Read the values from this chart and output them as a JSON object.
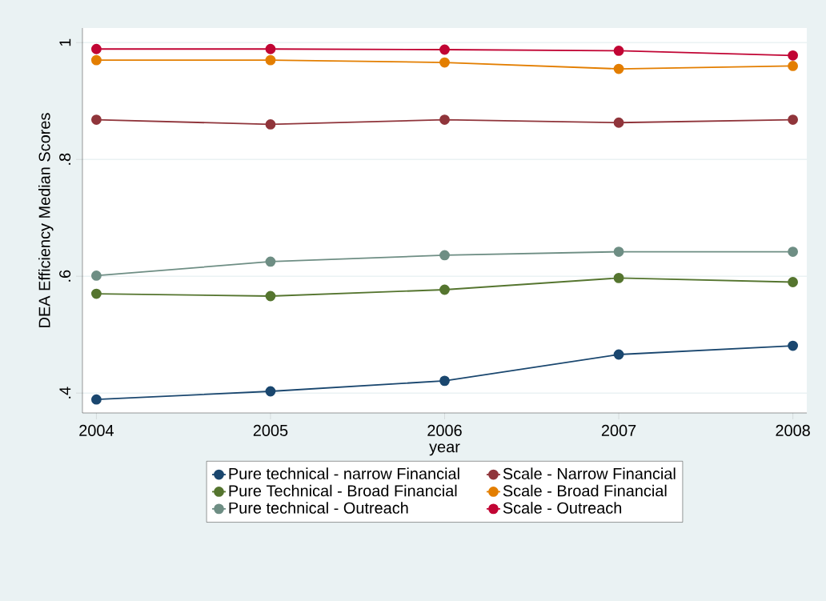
{
  "chart_data": {
    "type": "line",
    "xlabel": "year",
    "ylabel": "DEA Efficiency Median Scores",
    "x": [
      2004,
      2005,
      2006,
      2007,
      2008
    ],
    "series": [
      {
        "name": "Pure technical - narrow Financial",
        "color": "#1a476f",
        "values": [
          0.389,
          0.403,
          0.421,
          0.466,
          0.481
        ]
      },
      {
        "name": "Scale - Narrow Financial",
        "color": "#90353b",
        "values": [
          0.868,
          0.86,
          0.868,
          0.863,
          0.868
        ]
      },
      {
        "name": "Pure Technical - Broad Financial",
        "color": "#55752f",
        "values": [
          0.57,
          0.566,
          0.577,
          0.597,
          0.59
        ]
      },
      {
        "name": "Scale - Broad Financial",
        "color": "#e37e00",
        "values": [
          0.97,
          0.97,
          0.966,
          0.955,
          0.96
        ]
      },
      {
        "name": "Pure technical - Outreach",
        "color": "#6e8e84",
        "values": [
          0.601,
          0.625,
          0.636,
          0.642,
          0.642
        ]
      },
      {
        "name": "Scale - Outreach",
        "color": "#c10534",
        "values": [
          0.989,
          0.989,
          0.988,
          0.986,
          0.978
        ]
      }
    ],
    "xlim": [
      2003.92,
      2008.08
    ],
    "ylim": [
      0.366,
      1.025
    ],
    "xticks": [
      2004,
      2005,
      2006,
      2007,
      2008
    ],
    "yticks": [
      {
        "value": 0.4,
        "label": ".4"
      },
      {
        "value": 0.6,
        "label": ".6"
      },
      {
        "value": 0.8,
        "label": ".8"
      },
      1
    ],
    "grid": "y",
    "legend": "bottom",
    "marker": "circle",
    "line_style": "solid"
  }
}
